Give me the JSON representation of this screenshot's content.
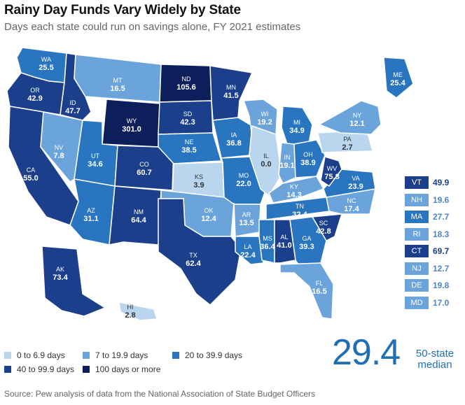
{
  "title": "Rainy Day Funds Vary Widely by State",
  "subtitle": "Days each state could run on savings alone, FY 2021 estimates",
  "colors": {
    "c1": "#b9d6ee",
    "c2": "#6ba4da",
    "c3": "#2a75c0",
    "c4": "#1c3f8c",
    "c5": "#0d1f5a"
  },
  "states": [
    {
      "abbr": "WA",
      "value": "25.5",
      "cls": "c3"
    },
    {
      "abbr": "OR",
      "value": "42.9",
      "cls": "c4"
    },
    {
      "abbr": "CA",
      "value": "55.0",
      "cls": "c4"
    },
    {
      "abbr": "ID",
      "value": "47.7",
      "cls": "c4"
    },
    {
      "abbr": "NV",
      "value": "7.8",
      "cls": "c2"
    },
    {
      "abbr": "MT",
      "value": "16.5",
      "cls": "c2"
    },
    {
      "abbr": "WY",
      "value": "301.0",
      "cls": "c5"
    },
    {
      "abbr": "UT",
      "value": "34.6",
      "cls": "c3"
    },
    {
      "abbr": "AZ",
      "value": "31.1",
      "cls": "c3"
    },
    {
      "abbr": "CO",
      "value": "60.7",
      "cls": "c4"
    },
    {
      "abbr": "NM",
      "value": "64.4",
      "cls": "c4"
    },
    {
      "abbr": "ND",
      "value": "105.6",
      "cls": "c5"
    },
    {
      "abbr": "SD",
      "value": "42.3",
      "cls": "c4"
    },
    {
      "abbr": "NE",
      "value": "38.5",
      "cls": "c3"
    },
    {
      "abbr": "KS",
      "value": "3.9",
      "cls": "c1"
    },
    {
      "abbr": "OK",
      "value": "12.4",
      "cls": "c2"
    },
    {
      "abbr": "TX",
      "value": "62.4",
      "cls": "c4"
    },
    {
      "abbr": "MN",
      "value": "41.5",
      "cls": "c4"
    },
    {
      "abbr": "IA",
      "value": "36.8",
      "cls": "c3"
    },
    {
      "abbr": "MO",
      "value": "22.0",
      "cls": "c3"
    },
    {
      "abbr": "AR",
      "value": "13.5",
      "cls": "c2"
    },
    {
      "abbr": "LA",
      "value": "22.4",
      "cls": "c3"
    },
    {
      "abbr": "WI",
      "value": "19.2",
      "cls": "c2"
    },
    {
      "abbr": "IL",
      "value": "0.0",
      "cls": "c1"
    },
    {
      "abbr": "MI",
      "value": "34.9",
      "cls": "c3"
    },
    {
      "abbr": "IN",
      "value": "19.1",
      "cls": "c2"
    },
    {
      "abbr": "OH",
      "value": "38.9",
      "cls": "c3"
    },
    {
      "abbr": "KY",
      "value": "14.3",
      "cls": "c2"
    },
    {
      "abbr": "TN",
      "value": "32.4",
      "cls": "c3"
    },
    {
      "abbr": "MS",
      "value": "36.4",
      "cls": "c3"
    },
    {
      "abbr": "AL",
      "value": "41.0",
      "cls": "c4"
    },
    {
      "abbr": "GA",
      "value": "39.3",
      "cls": "c3"
    },
    {
      "abbr": "FL",
      "value": "16.5",
      "cls": "c2"
    },
    {
      "abbr": "SC",
      "value": "42.8",
      "cls": "c4"
    },
    {
      "abbr": "NC",
      "value": "17.4",
      "cls": "c2"
    },
    {
      "abbr": "VA",
      "value": "23.9",
      "cls": "c3"
    },
    {
      "abbr": "WV",
      "value": "75.8",
      "cls": "c4"
    },
    {
      "abbr": "PA",
      "value": "2.7",
      "cls": "c1"
    },
    {
      "abbr": "NY",
      "value": "12.1",
      "cls": "c2"
    },
    {
      "abbr": "ME",
      "value": "25.4",
      "cls": "c3"
    },
    {
      "abbr": "AK",
      "value": "73.4",
      "cls": "c4"
    },
    {
      "abbr": "HI",
      "value": "2.8",
      "cls": "c1"
    }
  ],
  "small_states": [
    {
      "abbr": "VT",
      "value": "49.9",
      "cls": "c4"
    },
    {
      "abbr": "NH",
      "value": "19.6",
      "cls": "c2"
    },
    {
      "abbr": "MA",
      "value": "27.7",
      "cls": "c3"
    },
    {
      "abbr": "RI",
      "value": "18.3",
      "cls": "c2"
    },
    {
      "abbr": "CT",
      "value": "69.7",
      "cls": "c4"
    },
    {
      "abbr": "NJ",
      "value": "12.7",
      "cls": "c2"
    },
    {
      "abbr": "DE",
      "value": "19.8",
      "cls": "c2"
    },
    {
      "abbr": "MD",
      "value": "17.0",
      "cls": "c2"
    }
  ],
  "legend": [
    {
      "label": "0 to 6.9 days",
      "cls": "c1"
    },
    {
      "label": "7 to 19.9 days",
      "cls": "c2"
    },
    {
      "label": "20 to 39.9 days",
      "cls": "c3"
    },
    {
      "label": "40 to 99.9 days",
      "cls": "c4"
    },
    {
      "label": "100 days or more",
      "cls": "c5"
    }
  ],
  "median": {
    "value": "29.4",
    "label_line1": "50-state",
    "label_line2": "median"
  },
  "source": "Source: Pew analysis of data from the National Association of State Budget Officers"
}
